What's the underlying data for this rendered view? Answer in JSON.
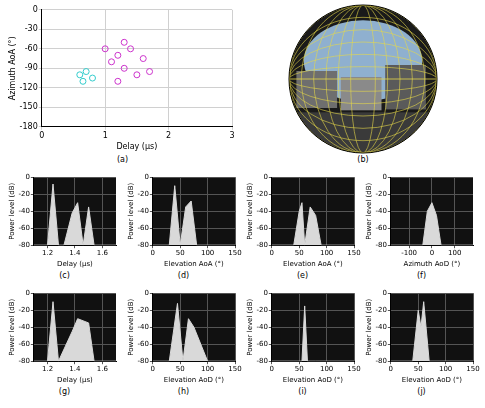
{
  "chart_data": [
    {
      "label": "(a)",
      "type": "scatter",
      "x_label": "Delay (μs)",
      "y_label": "Azimuth AoA (°)",
      "xlim": [
        0,
        3
      ],
      "xticks": [
        0,
        1,
        2,
        3
      ],
      "ylim": [
        -180,
        0
      ],
      "yticks": [
        -180,
        -150,
        -120,
        -90,
        -60,
        -30,
        0
      ],
      "grid": true,
      "marker": "circle",
      "series": [
        {
          "color": "#cc33cc",
          "x": [
            1.0,
            1.1,
            1.2,
            1.3,
            1.4,
            1.5,
            1.2,
            1.6,
            1.3,
            1.7
          ],
          "values": [
            -60,
            -80,
            -70,
            -90,
            -60,
            -100,
            -110,
            -75,
            -50,
            -95
          ]
        },
        {
          "color": "#33cccc",
          "x": [
            0.6,
            0.7,
            0.8,
            0.65
          ],
          "values": [
            -100,
            -95,
            -105,
            -110
          ]
        }
      ]
    },
    {
      "label": "(b)",
      "type": "image"
    },
    {
      "label": "(c)",
      "type": "line",
      "x_label": "Delay (μs)",
      "y_label": "Power level (dB)",
      "xlim": [
        1.1,
        1.7
      ],
      "xticks": [
        1.2,
        1.4,
        1.6
      ],
      "ylim": [
        -80,
        0
      ],
      "yticks": [
        -80,
        -60,
        -40,
        -20,
        0
      ],
      "grid": true,
      "color": "#d9d9d9",
      "x": [
        1.1,
        1.2,
        1.24,
        1.28,
        1.32,
        1.38,
        1.42,
        1.46,
        1.5,
        1.54,
        1.6,
        1.7
      ],
      "values": [
        -80,
        -80,
        -8,
        -80,
        -80,
        -42,
        -30,
        -80,
        -35,
        -80,
        -80,
        -80
      ]
    },
    {
      "label": "(d)",
      "type": "line",
      "x_label": "Elevation AoA (°)",
      "y_label": "Power level (dB)",
      "xlim": [
        0,
        150
      ],
      "xticks": [
        0,
        50,
        100,
        150
      ],
      "ylim": [
        -80,
        0
      ],
      "yticks": [
        -80,
        -60,
        -40,
        -20,
        0
      ],
      "grid": true,
      "color": "#d9d9d9",
      "x": [
        0,
        30,
        40,
        50,
        60,
        70,
        80,
        100,
        150
      ],
      "values": [
        -80,
        -80,
        -10,
        -80,
        -35,
        -28,
        -80,
        -80,
        -80
      ]
    },
    {
      "label": "(e)",
      "type": "line",
      "x_label": "Elevation AoA (°)",
      "y_label": "Power level (dB)",
      "xlim": [
        0,
        150
      ],
      "xticks": [
        0,
        50,
        100,
        150
      ],
      "ylim": [
        -80,
        0
      ],
      "yticks": [
        -80,
        -60,
        -40,
        -20,
        0
      ],
      "grid": true,
      "color": "#d9d9d9",
      "x": [
        0,
        40,
        50,
        55,
        60,
        70,
        80,
        90,
        150
      ],
      "values": [
        -80,
        -80,
        -40,
        -30,
        -80,
        -35,
        -45,
        -80,
        -80
      ]
    },
    {
      "label": "(f)",
      "type": "line",
      "x_label": "Azimuth AoD (°)",
      "y_label": "Power level (dB)",
      "xlim": [
        -180,
        180
      ],
      "xticks": [
        -100,
        0,
        100
      ],
      "ylim": [
        -80,
        0
      ],
      "yticks": [
        -80,
        -60,
        -40,
        -20,
        0
      ],
      "grid": true,
      "color": "#d9d9d9",
      "x": [
        -180,
        -100,
        -40,
        -20,
        0,
        20,
        40,
        100,
        180
      ],
      "values": [
        -80,
        -80,
        -80,
        -40,
        -30,
        -45,
        -80,
        -80,
        -80
      ]
    },
    {
      "label": "(g)",
      "type": "line",
      "x_label": "Delay (μs)",
      "y_label": "Power level (dB)",
      "xlim": [
        1.1,
        1.7
      ],
      "xticks": [
        1.2,
        1.4,
        1.6
      ],
      "ylim": [
        -80,
        0
      ],
      "yticks": [
        -80,
        -60,
        -40,
        -20,
        0
      ],
      "grid": true,
      "color": "#d9d9d9",
      "x": [
        1.1,
        1.2,
        1.24,
        1.28,
        1.38,
        1.42,
        1.5,
        1.54,
        1.7
      ],
      "values": [
        -80,
        -80,
        -10,
        -80,
        -45,
        -30,
        -35,
        -80,
        -80
      ]
    },
    {
      "label": "(h)",
      "type": "line",
      "x_label": "Elevation AoD (°)",
      "y_label": "Power level (dB)",
      "xlim": [
        0,
        150
      ],
      "xticks": [
        0,
        50,
        100,
        150
      ],
      "ylim": [
        -80,
        0
      ],
      "yticks": [
        -80,
        -60,
        -40,
        -20,
        0
      ],
      "grid": true,
      "color": "#d9d9d9",
      "x": [
        0,
        30,
        45,
        55,
        65,
        75,
        100,
        150
      ],
      "values": [
        -80,
        -80,
        -12,
        -80,
        -30,
        -40,
        -80,
        -80
      ]
    },
    {
      "label": "(i)",
      "type": "line",
      "x_label": "Elevation AoD (°)",
      "y_label": "Power level (dB)",
      "xlim": [
        0,
        150
      ],
      "xticks": [
        0,
        50,
        100,
        150
      ],
      "ylim": [
        -80,
        0
      ],
      "yticks": [
        -80,
        -60,
        -40,
        -20,
        0
      ],
      "grid": true,
      "color": "#d9d9d9",
      "x": [
        0,
        40,
        55,
        60,
        65,
        80,
        150
      ],
      "values": [
        -80,
        -80,
        -80,
        -15,
        -80,
        -80,
        -80
      ]
    },
    {
      "label": "(j)",
      "type": "line",
      "x_label": "Elevation AoD (°)",
      "y_label": "Power level (dB)",
      "xlim": [
        0,
        150
      ],
      "xticks": [
        0,
        50,
        100,
        150
      ],
      "ylim": [
        -80,
        0
      ],
      "yticks": [
        -80,
        -60,
        -40,
        -20,
        0
      ],
      "grid": true,
      "color": "#d9d9d9",
      "x": [
        0,
        40,
        50,
        55,
        60,
        70,
        150
      ],
      "values": [
        -80,
        -80,
        -20,
        -40,
        -10,
        -80,
        -80
      ]
    }
  ]
}
